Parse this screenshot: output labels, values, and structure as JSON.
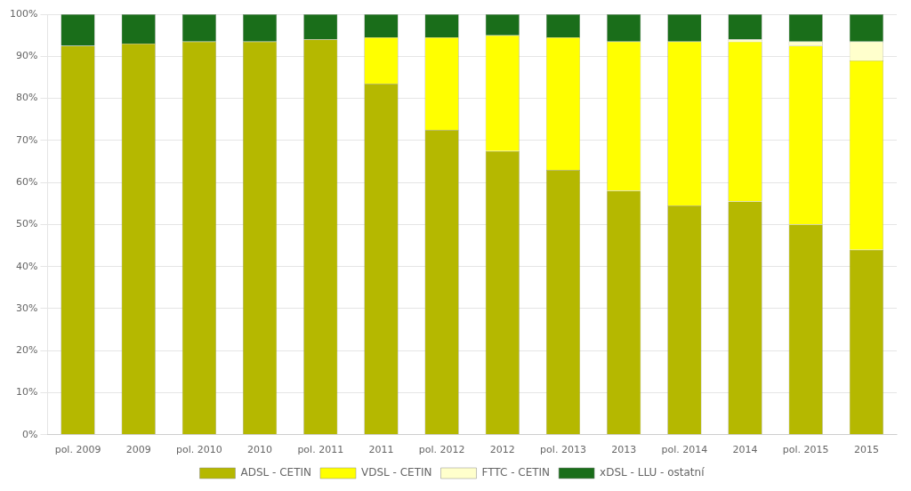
{
  "chart_data": {
    "type": "bar",
    "stacked": true,
    "categories": [
      "pol. 2009",
      "2009",
      "pol. 2010",
      "2010",
      "pol. 2011",
      "2011",
      "pol. 2012",
      "2012",
      "pol. 2013",
      "2013",
      "pol. 2014",
      "2014",
      "pol. 2015",
      "2015"
    ],
    "series": [
      {
        "name": "ADSL - CETIN",
        "color": "#b5b800",
        "values": [
          92.5,
          93.0,
          93.5,
          93.5,
          94.0,
          83.5,
          72.5,
          67.5,
          63.0,
          58.0,
          54.5,
          55.5,
          50.0,
          44.0
        ]
      },
      {
        "name": "VDSL - CETIN",
        "color": "#ffff00",
        "values": [
          0.0,
          0.0,
          0.0,
          0.0,
          0.0,
          11.0,
          22.0,
          27.5,
          31.5,
          35.5,
          39.0,
          38.0,
          42.5,
          45.0
        ]
      },
      {
        "name": "FTTC - CETIN",
        "color": "#ffffcc",
        "values": [
          0.0,
          0.0,
          0.0,
          0.0,
          0.0,
          0.0,
          0.0,
          0.0,
          0.0,
          0.0,
          0.0,
          0.5,
          1.0,
          4.5
        ]
      },
      {
        "name": "xDSL - LLU - ostatní",
        "color": "#1a6e1a",
        "values": [
          7.5,
          7.0,
          6.5,
          6.5,
          6.0,
          5.5,
          5.5,
          5.0,
          5.5,
          6.5,
          6.5,
          6.0,
          6.5,
          6.5
        ]
      }
    ],
    "ylim": [
      0,
      100
    ],
    "yticks": [
      {
        "value": 0,
        "label": "0%"
      },
      {
        "value": 10,
        "label": "10%"
      },
      {
        "value": 20,
        "label": "20%"
      },
      {
        "value": 30,
        "label": "30%"
      },
      {
        "value": 40,
        "label": "40%"
      },
      {
        "value": 50,
        "label": "50%"
      },
      {
        "value": 60,
        "label": "60%"
      },
      {
        "value": 70,
        "label": "70%"
      },
      {
        "value": 80,
        "label": "80%"
      },
      {
        "value": 90,
        "label": "90%"
      },
      {
        "value": 100,
        "label": "100%"
      }
    ],
    "grid": true,
    "legend": "bottom"
  }
}
